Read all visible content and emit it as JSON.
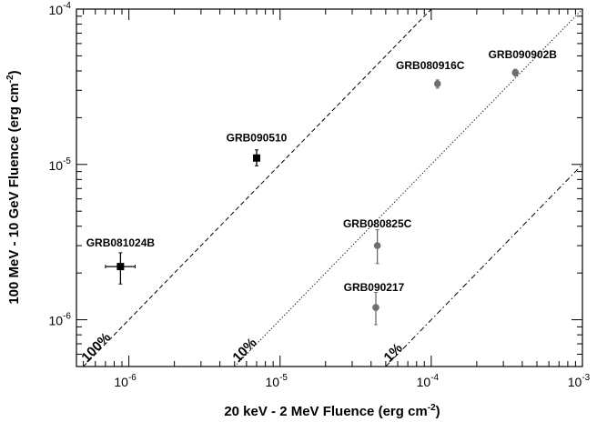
{
  "chart_data": {
    "type": "scatter",
    "x_scale": "log",
    "y_scale": "log",
    "xlim": [
      4.5e-07,
      0.001
    ],
    "ylim": [
      5e-07,
      0.0001
    ],
    "grid": false,
    "xlabel": {
      "main": "20 keV - 2 MeV   Fluence (erg cm",
      "sup": "-2",
      "close": ")"
    },
    "ylabel": {
      "main": "100 MeV - 10 GeV   Fluence (erg cm",
      "sup": "-2",
      "close": ")"
    },
    "x_ticks": [
      {
        "value": 1e-06,
        "base": "10",
        "exp": "-6"
      },
      {
        "value": 1e-05,
        "base": "10",
        "exp": "-5"
      },
      {
        "value": 0.0001,
        "base": "10",
        "exp": "-4"
      },
      {
        "value": 0.001,
        "base": "10",
        "exp": "-3"
      }
    ],
    "y_ticks": [
      {
        "value": 1e-06,
        "base": "10",
        "exp": "-6"
      },
      {
        "value": 1e-05,
        "base": "10",
        "exp": "-5"
      },
      {
        "value": 0.0001,
        "base": "10",
        "exp": "-4"
      }
    ],
    "ratio_lines": [
      {
        "label": "100%",
        "ratio": 1.0,
        "dash": "dashed"
      },
      {
        "label": "10%",
        "ratio": 0.1,
        "dash": "dotted"
      },
      {
        "label": "1%",
        "ratio": 0.01,
        "dash": "dashdot"
      }
    ],
    "points": [
      {
        "name": "GRB081024B",
        "x": 8.8e-07,
        "y": 2.2e-06,
        "x_err": [
          7e-07,
          1.1e-06
        ],
        "y_err": [
          1.7e-06,
          2.7e-06
        ],
        "marker": "square",
        "color": "#000000"
      },
      {
        "name": "GRB090510",
        "x": 7e-06,
        "y": 1.1e-05,
        "x_err": null,
        "y_err": [
          9.8e-06,
          1.24e-05
        ],
        "marker": "square",
        "color": "#000000"
      },
      {
        "name": "GRB080916C",
        "x": 0.00011,
        "y": 3.3e-05,
        "x_err": null,
        "y_err": [
          3.1e-05,
          3.5e-05
        ],
        "marker": "circle",
        "color": "#6e6e6e"
      },
      {
        "name": "GRB090902B",
        "x": 0.00036,
        "y": 3.9e-05,
        "x_err": null,
        "y_err": [
          3.7e-05,
          4.1e-05
        ],
        "marker": "circle",
        "color": "#6e6e6e"
      },
      {
        "name": "GRB080825C",
        "x": 4.4e-05,
        "y": 3e-06,
        "x_err": null,
        "y_err": [
          2.3e-06,
          3.8e-06
        ],
        "marker": "circle",
        "color": "#6e6e6e"
      },
      {
        "name": "GRB090217",
        "x": 4.3e-05,
        "y": 1.2e-06,
        "x_err": null,
        "y_err": [
          9.3e-07,
          1.5e-06
        ],
        "marker": "circle",
        "color": "#6e6e6e"
      }
    ]
  }
}
